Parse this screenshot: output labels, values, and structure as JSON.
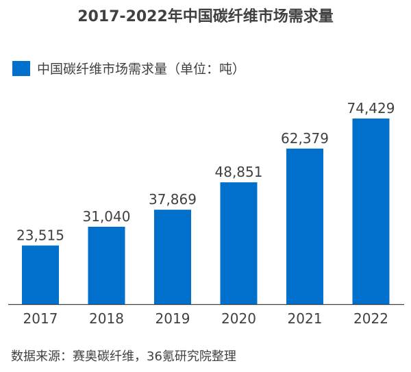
{
  "chart_data": {
    "type": "bar",
    "title": "2017-2022年中国碳纤维市场需求量",
    "categories": [
      "2017",
      "2018",
      "2019",
      "2020",
      "2021",
      "2022"
    ],
    "series": [
      {
        "name": "中国碳纤维市场需求量（单位：吨）",
        "values": [
          23515,
          31040,
          37869,
          48851,
          62379,
          74429
        ],
        "color": "#0070cc"
      }
    ],
    "data_labels": [
      "23,515",
      "31,040",
      "37,869",
      "48,851",
      "62,379",
      "74,429"
    ],
    "xlabel": "",
    "ylabel": "",
    "ylim": [
      0,
      74429
    ],
    "grid": false,
    "legend_position": "top-left"
  },
  "source": "数据来源：赛奥碳纤维，36氪研究院整理"
}
